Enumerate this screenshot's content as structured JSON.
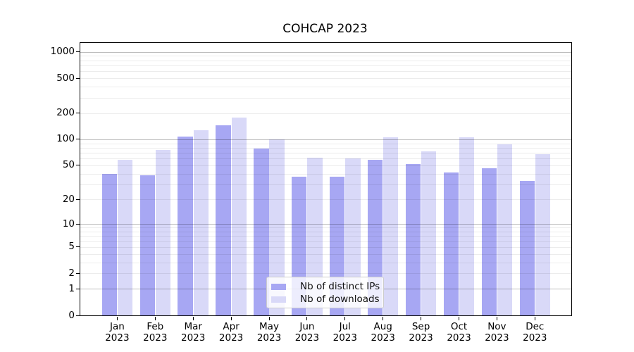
{
  "chart_data": {
    "type": "bar",
    "title": "COHCAP 2023",
    "y_scale": "log10(value+1)",
    "ylim": [
      0,
      1259
    ],
    "y_ticks": [
      1000,
      500,
      200,
      100,
      50,
      20,
      10,
      5,
      2,
      1,
      0
    ],
    "y_major_gridlines": [
      1000,
      100,
      10,
      1
    ],
    "y_minor_gridlines": [
      2,
      3,
      4,
      5,
      6,
      7,
      8,
      9,
      20,
      30,
      40,
      50,
      60,
      70,
      80,
      90,
      200,
      300,
      400,
      500,
      600,
      700,
      800,
      900
    ],
    "grid": true,
    "categories": [
      "Jan",
      "Feb",
      "Mar",
      "Apr",
      "May",
      "Jun",
      "Jul",
      "Aug",
      "Sep",
      "Oct",
      "Nov",
      "Dec"
    ],
    "x_tick_year": "2023",
    "series": [
      {
        "name": "Nb of distinct IPs",
        "color": "#a7a7f3",
        "values": [
          40,
          38,
          108,
          145,
          78,
          37,
          37,
          58,
          52,
          41,
          46,
          33
        ]
      },
      {
        "name": "Nb of downloads",
        "color": "#d9d9f8",
        "values": [
          58,
          75,
          127,
          178,
          100,
          61,
          60,
          105,
          72,
          105,
          88,
          67
        ]
      }
    ],
    "legend_position": "lower center-right inside plot"
  },
  "colors": {
    "background": "#ffffff",
    "axis": "#000000",
    "text": "#000000",
    "legend_border": "#cccccc"
  }
}
